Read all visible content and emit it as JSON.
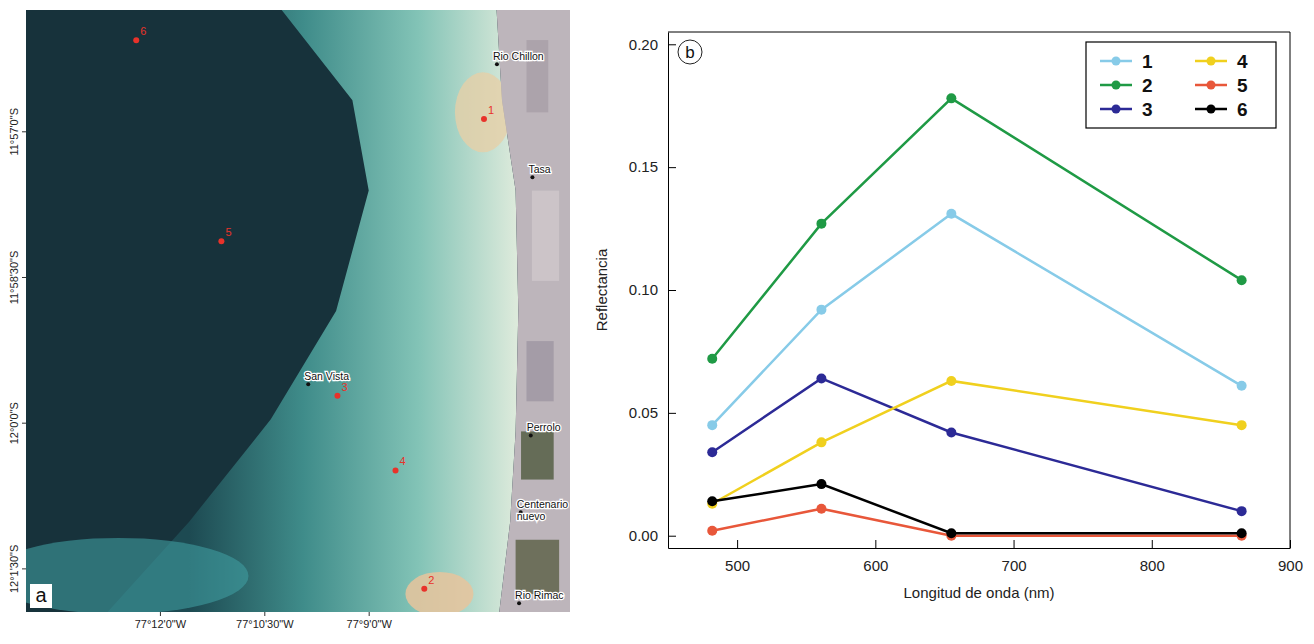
{
  "map": {
    "panel_label": "a",
    "xlim": [
      -77.2322,
      -77.1019
    ],
    "ylim": [
      -12.0324,
      -11.9291
    ],
    "xticks": [
      {
        "value": -77.2,
        "label": "77°12'0\"W"
      },
      {
        "value": -77.175,
        "label": "77°10'30\"W"
      },
      {
        "value": -77.15,
        "label": "77°9'0\"W"
      }
    ],
    "yticks": [
      {
        "value": -11.95,
        "label": "11°57'0\"S"
      },
      {
        "value": -11.975,
        "label": "11°58'30\"S"
      },
      {
        "value": -12.0,
        "label": "12°0'0\"S"
      },
      {
        "value": -12.025,
        "label": "12°1'30\"S"
      }
    ],
    "stations": [
      {
        "label": "1",
        "lon": -77.1225,
        "lat": -11.9478
      },
      {
        "label": "2",
        "lon": -77.1368,
        "lat": -12.0284
      },
      {
        "label": "3",
        "lon": -77.1576,
        "lat": -11.9953
      },
      {
        "label": "4",
        "lon": -77.1437,
        "lat": -12.0081
      },
      {
        "label": "5",
        "lon": -77.1854,
        "lat": -11.9688
      },
      {
        "label": "6",
        "lon": -77.2058,
        "lat": -11.9343
      }
    ],
    "places": [
      {
        "label": "Rio Chillon",
        "lon": -77.1194,
        "lat": -11.9384
      },
      {
        "label": "Tasa",
        "lon": -77.1109,
        "lat": -11.9578
      },
      {
        "label": "San Vista",
        "lon": -77.1646,
        "lat": -11.9933
      },
      {
        "label": "Perrolo",
        "lon": -77.1113,
        "lat": -12.0021
      },
      {
        "label": "Centenario nuevo",
        "lon": -77.1137,
        "lat": -12.0153
      },
      {
        "label": "Rio Rimac",
        "lon": -77.1141,
        "lat": -12.0309
      }
    ]
  },
  "chart_data": {
    "type": "line",
    "panel_label": "b",
    "x_label": "Longitud de onda (nm)",
    "y_label": "Reflectancia",
    "x": [
      482,
      561,
      655,
      865
    ],
    "series": [
      {
        "name": "1",
        "color": "#87cbe8",
        "values": [
          0.045,
          0.092,
          0.131,
          0.061
        ]
      },
      {
        "name": "2",
        "color": "#1f9a45",
        "values": [
          0.072,
          0.127,
          0.178,
          0.104
        ]
      },
      {
        "name": "3",
        "color": "#2c2a96",
        "values": [
          0.034,
          0.064,
          0.042,
          0.01
        ]
      },
      {
        "name": "4",
        "color": "#f0d01e",
        "values": [
          0.013,
          0.038,
          0.063,
          0.045
        ]
      },
      {
        "name": "5",
        "color": "#e8573a",
        "values": [
          0.002,
          0.011,
          0.0,
          0.0
        ]
      },
      {
        "name": "6",
        "color": "#000000",
        "values": [
          0.014,
          0.021,
          0.001,
          0.001
        ]
      }
    ],
    "marker": "circle",
    "line_style": "solid",
    "xlim": [
      450,
      900
    ],
    "ylim": [
      -0.005,
      0.205
    ],
    "xticks": [
      500,
      600,
      700,
      800,
      900
    ],
    "yticks": [
      {
        "value": 0.0,
        "label": "0.00"
      },
      {
        "value": 0.05,
        "label": "0.05"
      },
      {
        "value": 0.1,
        "label": "0.10"
      },
      {
        "value": 0.15,
        "label": "0.15"
      },
      {
        "value": 0.2,
        "label": "0.20"
      }
    ],
    "legend": "top-right",
    "grid": false
  }
}
